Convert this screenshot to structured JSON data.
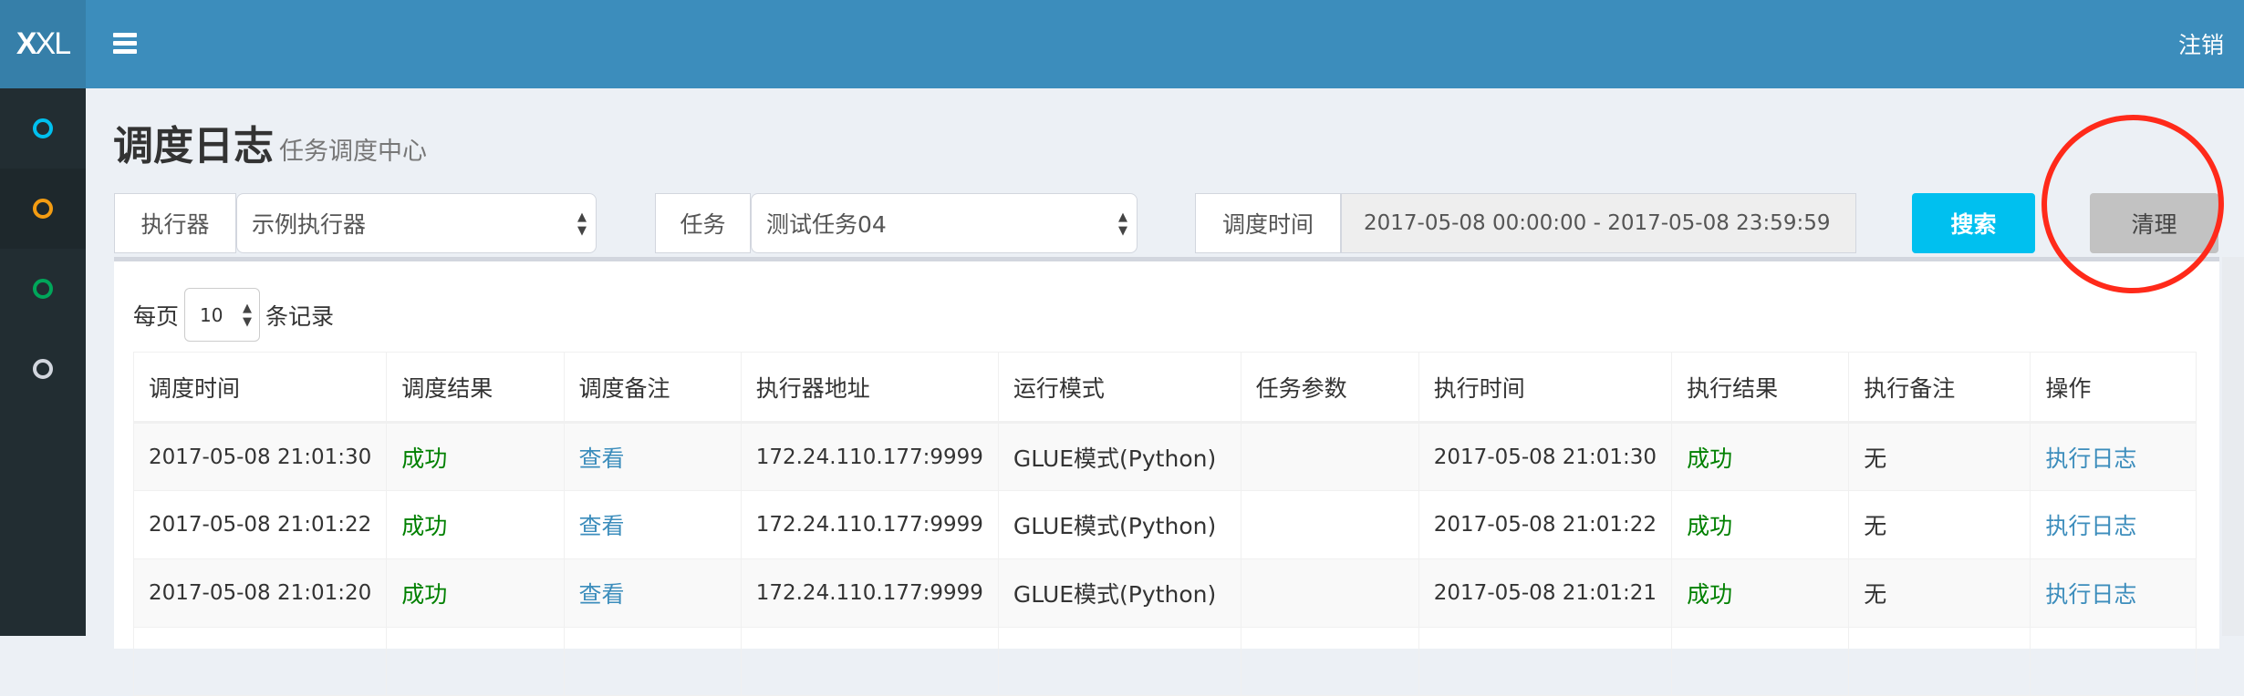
{
  "header": {
    "logo": {
      "bold": "X",
      "rest": "XL"
    },
    "logout": "注销"
  },
  "sidebar": {
    "items": [
      {
        "icon": "circle-icon",
        "color": "#00c0ef"
      },
      {
        "icon": "circle-icon",
        "color": "#f39c12"
      },
      {
        "icon": "circle-icon",
        "color": "#00a65a"
      },
      {
        "icon": "circle-icon",
        "color": "#d2d6de"
      }
    ]
  },
  "page": {
    "title": "调度日志",
    "subtitle": "任务调度中心"
  },
  "filters": {
    "executor": {
      "label": "执行器",
      "value": "示例执行器"
    },
    "task": {
      "label": "任务",
      "value": "测试任务04"
    },
    "time": {
      "label": "调度时间",
      "value": "2017-05-08 00:00:00 - 2017-05-08 23:59:59"
    },
    "search": "搜索",
    "clear": "清理"
  },
  "colors": {
    "header": "#3c8dbc",
    "search": "#00c0ef",
    "success": "#008000",
    "link": "#3c8dbc",
    "annotation": "#ff2a1a"
  },
  "pagination": {
    "prefix": "每页",
    "size": "10",
    "suffix": "条记录"
  },
  "table": {
    "columns": [
      "调度时间",
      "调度结果",
      "调度备注",
      "执行器地址",
      "运行模式",
      "任务参数",
      "执行时间",
      "执行结果",
      "执行备注",
      "操作"
    ],
    "rows": [
      [
        "2017-05-08 21:01:30",
        "成功",
        "查看",
        "172.24.110.177:9999",
        "GLUE模式(Python)",
        "",
        "2017-05-08 21:01:30",
        "成功",
        "无",
        "执行日志"
      ],
      [
        "2017-05-08 21:01:22",
        "成功",
        "查看",
        "172.24.110.177:9999",
        "GLUE模式(Python)",
        "",
        "2017-05-08 21:01:22",
        "成功",
        "无",
        "执行日志"
      ],
      [
        "2017-05-08 21:01:20",
        "成功",
        "查看",
        "172.24.110.177:9999",
        "GLUE模式(Python)",
        "",
        "2017-05-08 21:01:21",
        "成功",
        "无",
        "执行日志"
      ]
    ]
  }
}
